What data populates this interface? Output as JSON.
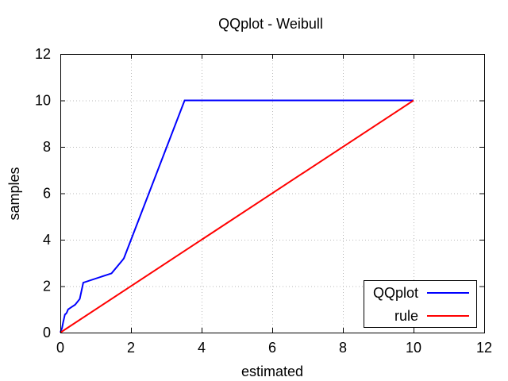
{
  "chart_data": {
    "type": "line",
    "title": "QQplot - Weibull",
    "xlabel": "estimated",
    "ylabel": "samples",
    "xlim": [
      0,
      12
    ],
    "ylim": [
      0,
      12
    ],
    "xticks": [
      0,
      2,
      4,
      6,
      8,
      10,
      12
    ],
    "yticks": [
      0,
      2,
      4,
      6,
      8,
      10,
      12
    ],
    "grid": true,
    "legend_position": "bottom-right",
    "series": [
      {
        "name": "QQplot",
        "color": "#0000ff",
        "x": [
          0.0,
          0.05,
          0.08,
          0.13,
          0.15,
          0.18,
          0.22,
          0.27,
          0.32,
          0.42,
          0.55,
          0.65,
          1.45,
          1.75,
          1.8,
          3.52,
          10.0
        ],
        "y": [
          0.0,
          0.2,
          0.45,
          0.78,
          0.8,
          0.85,
          1.0,
          1.05,
          1.1,
          1.2,
          1.45,
          2.15,
          2.55,
          3.1,
          3.2,
          10.0,
          10.0
        ]
      },
      {
        "name": "rule",
        "color": "#ff0000",
        "x": [
          0,
          10
        ],
        "y": [
          0,
          10
        ]
      }
    ]
  }
}
